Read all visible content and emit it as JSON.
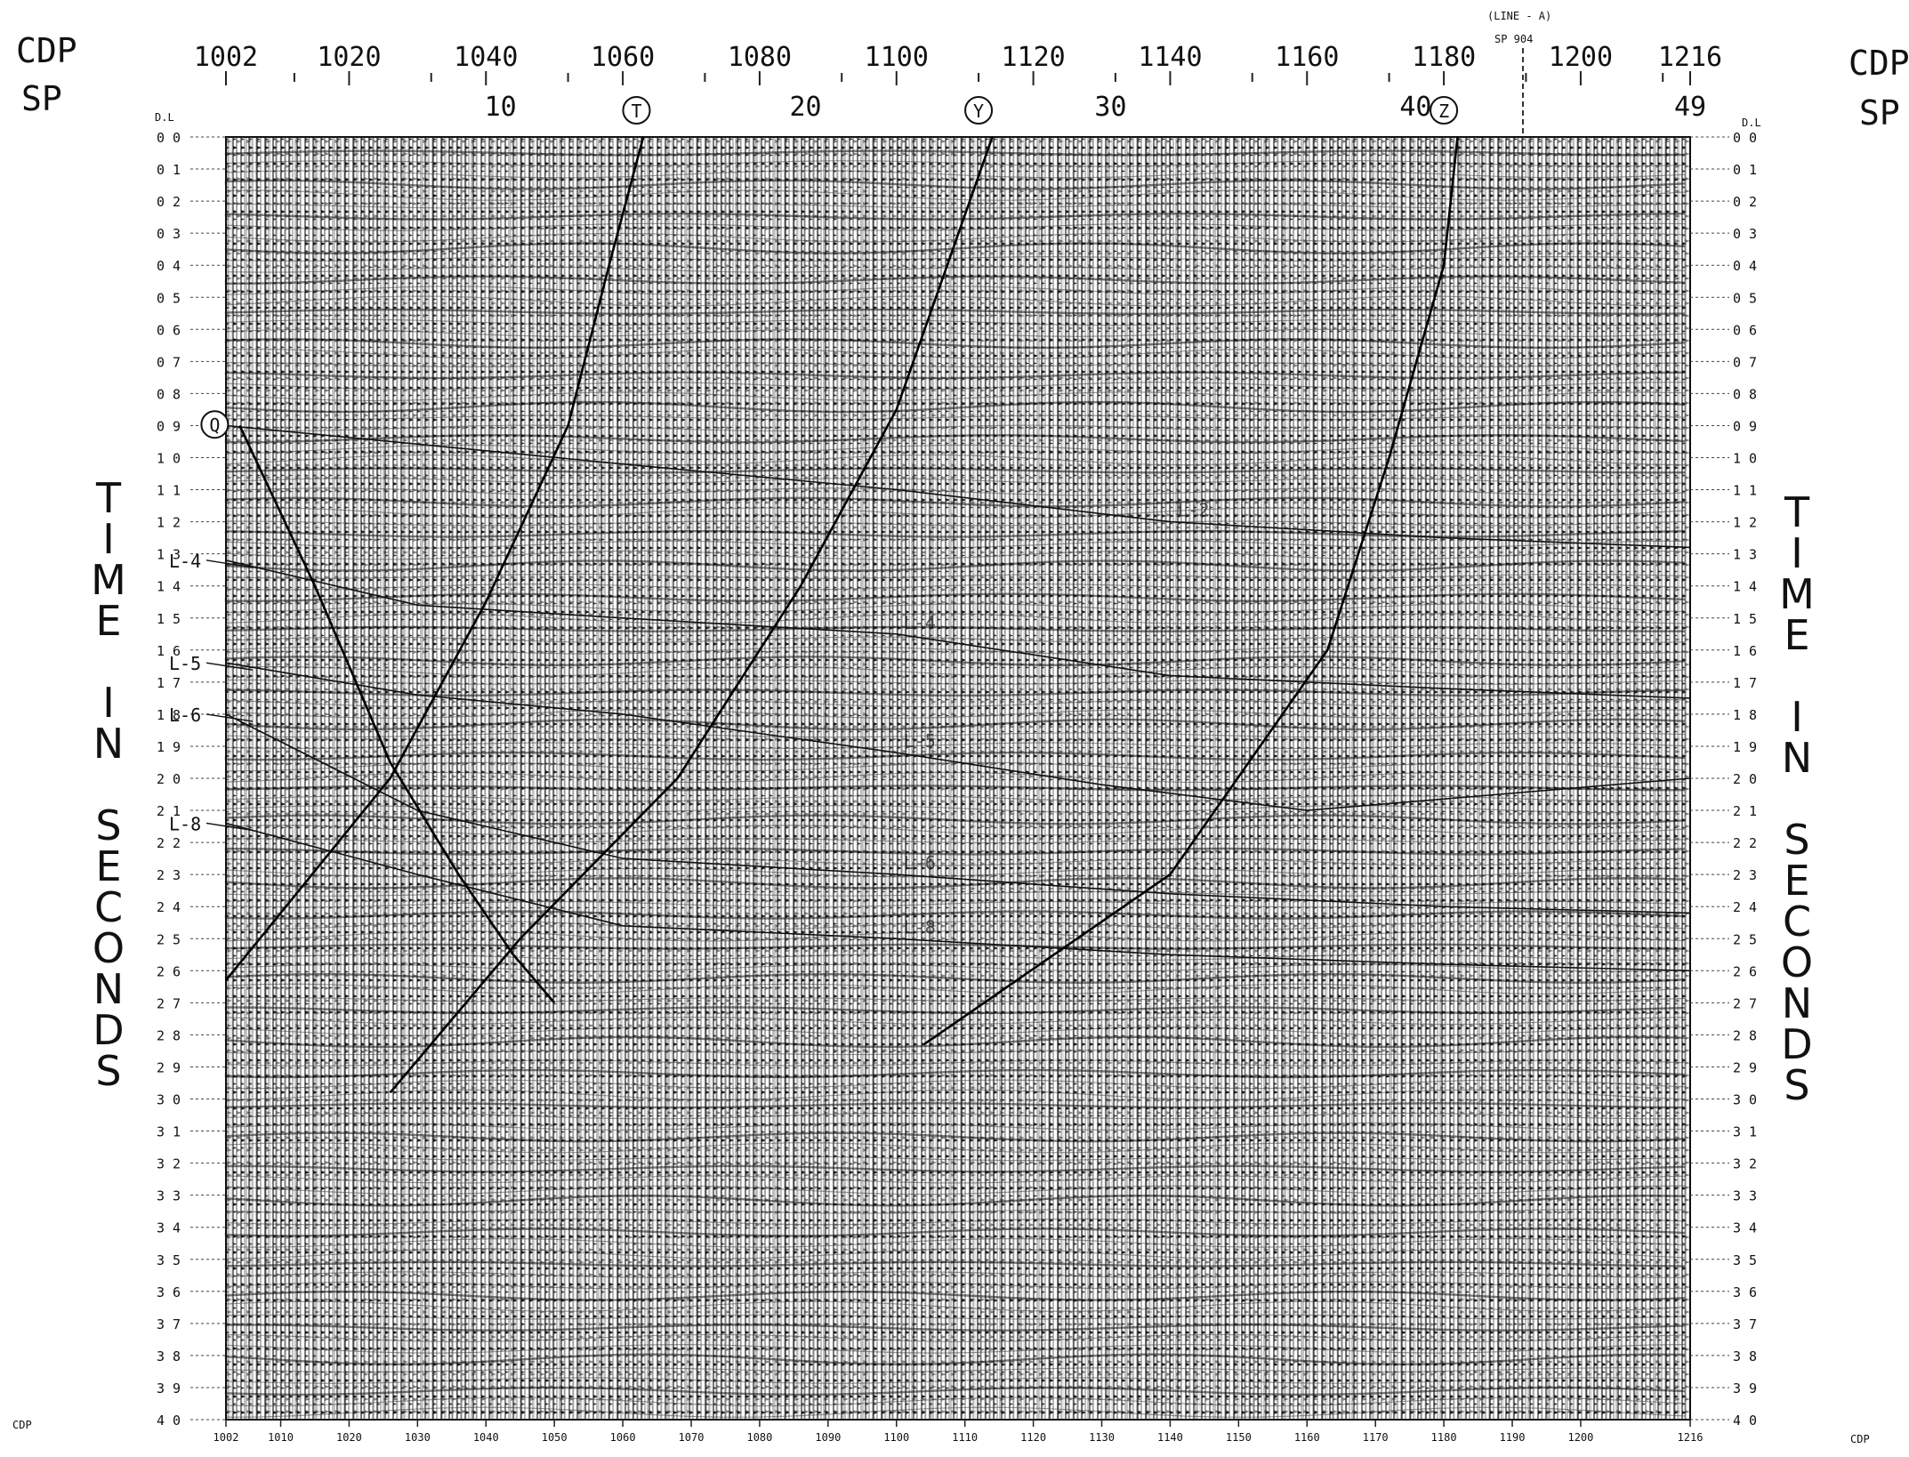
{
  "labels": {
    "cdp": "CDP",
    "sp": "SP",
    "dl": "D.L",
    "small_cdp": "CDP",
    "line_note": "(LINE - A)",
    "line_note_sub": "SP 904"
  },
  "top_cdp_ticks": [
    "1002",
    "1020",
    "1040",
    "1060",
    "1080",
    "1100",
    "1120",
    "1140",
    "1160",
    "1180",
    "1200",
    "1216"
  ],
  "sp_ticks": [
    {
      "label": "10",
      "sp": 10
    },
    {
      "label": "20",
      "sp": 20
    },
    {
      "label": "30",
      "sp": 30
    },
    {
      "label": "40",
      "sp": 40
    },
    {
      "label": "49",
      "sp": 49
    }
  ],
  "bottom_cdp_ticks": [
    "1002",
    "1010",
    "1020",
    "1030",
    "1040",
    "1050",
    "1060",
    "1070",
    "1080",
    "1090",
    "1100",
    "1110",
    "1120",
    "1130",
    "1140",
    "1150",
    "1160",
    "1170",
    "1180",
    "1190",
    "1200",
    "1216"
  ],
  "time_ticks": [
    "0 0",
    "0 1",
    "0 2",
    "0 3",
    "0 4",
    "0 5",
    "0 6",
    "0 7",
    "0 8",
    "0 9",
    "1 0",
    "1 1",
    "1 2",
    "1 3",
    "1 4",
    "1 5",
    "1 6",
    "1 7",
    "1 8",
    "1 9",
    "2 0",
    "2 1",
    "2 2",
    "2 3",
    "2 4",
    "2 5",
    "2 6",
    "2 7",
    "2 8",
    "2 9",
    "3 0",
    "3 1",
    "3 2",
    "3 3",
    "3 4",
    "3 5",
    "3 6",
    "3 7",
    "3 8",
    "3 9",
    "4 0"
  ],
  "axis_title_left": [
    "T",
    "I",
    "M",
    "E",
    "",
    "I",
    "N",
    "",
    "S",
    "E",
    "C",
    "O",
    "N",
    "D",
    "S"
  ],
  "axis_title_right": [
    "T",
    "I",
    "M",
    "E",
    "",
    "I",
    "N",
    "",
    "S",
    "E",
    "C",
    "O",
    "N",
    "D",
    "S"
  ],
  "left_horizon_labels": [
    {
      "label": "L-4",
      "t": 1.32
    },
    {
      "label": "L-5",
      "t": 1.64
    },
    {
      "label": "L-6",
      "t": 1.8
    },
    {
      "label": "L-8",
      "t": 2.14
    }
  ],
  "crossing_markers": [
    {
      "label": "Q",
      "cdp": 1004,
      "t": 0.88
    },
    {
      "label": "T",
      "cdp": 1062,
      "t": -0.05
    },
    {
      "label": "Y",
      "cdp": 1112,
      "t": -0.05
    },
    {
      "label": "Z",
      "cdp": 1180,
      "t": -0.05
    }
  ],
  "horizons": [
    {
      "label": "L-2",
      "points": [
        [
          1002,
          0.9
        ],
        [
          1060,
          1.02
        ],
        [
          1100,
          1.1
        ],
        [
          1140,
          1.2
        ],
        [
          1180,
          1.25
        ],
        [
          1216,
          1.28
        ]
      ]
    },
    {
      "label": "L-4",
      "points": [
        [
          1002,
          1.32
        ],
        [
          1030,
          1.46
        ],
        [
          1060,
          1.5
        ],
        [
          1100,
          1.55
        ],
        [
          1140,
          1.68
        ],
        [
          1180,
          1.72
        ],
        [
          1216,
          1.75
        ]
      ]
    },
    {
      "label": "L-5",
      "points": [
        [
          1002,
          1.64
        ],
        [
          1030,
          1.74
        ],
        [
          1060,
          1.8
        ],
        [
          1100,
          1.92
        ],
        [
          1130,
          2.02
        ],
        [
          1160,
          2.1
        ],
        [
          1216,
          2.0
        ]
      ]
    },
    {
      "label": "L-6",
      "points": [
        [
          1002,
          1.8
        ],
        [
          1030,
          2.1
        ],
        [
          1060,
          2.25
        ],
        [
          1100,
          2.3
        ],
        [
          1140,
          2.36
        ],
        [
          1180,
          2.4
        ],
        [
          1216,
          2.42
        ]
      ]
    },
    {
      "label": "L-8",
      "points": [
        [
          1002,
          2.14
        ],
        [
          1030,
          2.3
        ],
        [
          1060,
          2.46
        ],
        [
          1100,
          2.5
        ],
        [
          1140,
          2.55
        ],
        [
          1180,
          2.58
        ],
        [
          1216,
          2.6
        ]
      ]
    }
  ],
  "crossing_lines": [
    {
      "points": [
        [
          1002,
          2.63
        ],
        [
          1026,
          2.0
        ],
        [
          1040,
          1.45
        ],
        [
          1052,
          0.9
        ],
        [
          1058,
          0.4
        ],
        [
          1063,
          0.0
        ]
      ]
    },
    {
      "points": [
        [
          1026,
          2.98
        ],
        [
          1045,
          2.5
        ],
        [
          1068,
          2.0
        ],
        [
          1086,
          1.4
        ],
        [
          1100,
          0.85
        ],
        [
          1114,
          0.0
        ]
      ]
    },
    {
      "points": [
        [
          1104,
          2.83
        ],
        [
          1140,
          2.3
        ],
        [
          1163,
          1.6
        ],
        [
          1172,
          1.0
        ],
        [
          1180,
          0.4
        ],
        [
          1182,
          0.0
        ]
      ]
    },
    {
      "points": [
        [
          1004,
          0.9
        ],
        [
          1015,
          1.4
        ],
        [
          1026,
          1.95
        ],
        [
          1036,
          2.3
        ],
        [
          1044,
          2.55
        ],
        [
          1050,
          2.7
        ]
      ]
    }
  ]
}
